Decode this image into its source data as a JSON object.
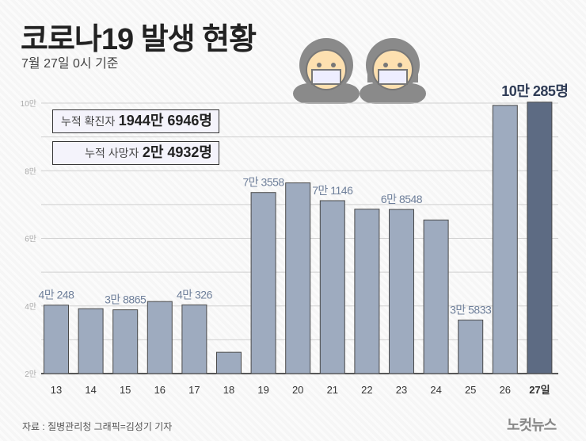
{
  "header": {
    "title": "코로나19 발생 현황",
    "subtitle": "7월 27일 0시 기준"
  },
  "summary": {
    "confirmed_label": "누적 확진자",
    "confirmed_value": "1944만 6946명",
    "deaths_label": "누적 사망자",
    "deaths_value": "2만 4932명"
  },
  "footer": {
    "source": "자료 : 질병관리청   그래픽=김성기 기자",
    "logo": "노컷뉴스"
  },
  "colors": {
    "bar": "#9eabbf",
    "highlight": "#5d6b83",
    "label": "#6e7f9a",
    "highlight_label": "#2e3b55"
  },
  "chart_data": {
    "type": "bar",
    "title": "코로나19 발생 현황",
    "xlabel": "",
    "ylabel": "",
    "categories": [
      "13",
      "14",
      "15",
      "16",
      "17",
      "18",
      "19",
      "20",
      "21",
      "22",
      "23",
      "24",
      "25",
      "26",
      "27일"
    ],
    "values": [
      40248,
      39196,
      38865,
      41310,
      40326,
      26299,
      73558,
      76402,
      71146,
      68632,
      68548,
      65433,
      35833,
      99327,
      100285
    ],
    "data_labels": [
      "4만 248",
      "",
      "3만 8865",
      "",
      "4만 326",
      "",
      "7만 3558",
      "",
      "7만 1146",
      "",
      "6만 8548",
      "",
      "3만 5833",
      "",
      "10만 285명"
    ],
    "ylim": [
      20000,
      100000
    ],
    "yticks": [
      20000,
      40000,
      60000,
      80000,
      100000
    ],
    "ytick_labels": [
      "2만",
      "4만",
      "6만",
      "8만",
      "10만"
    ],
    "grid": true
  }
}
